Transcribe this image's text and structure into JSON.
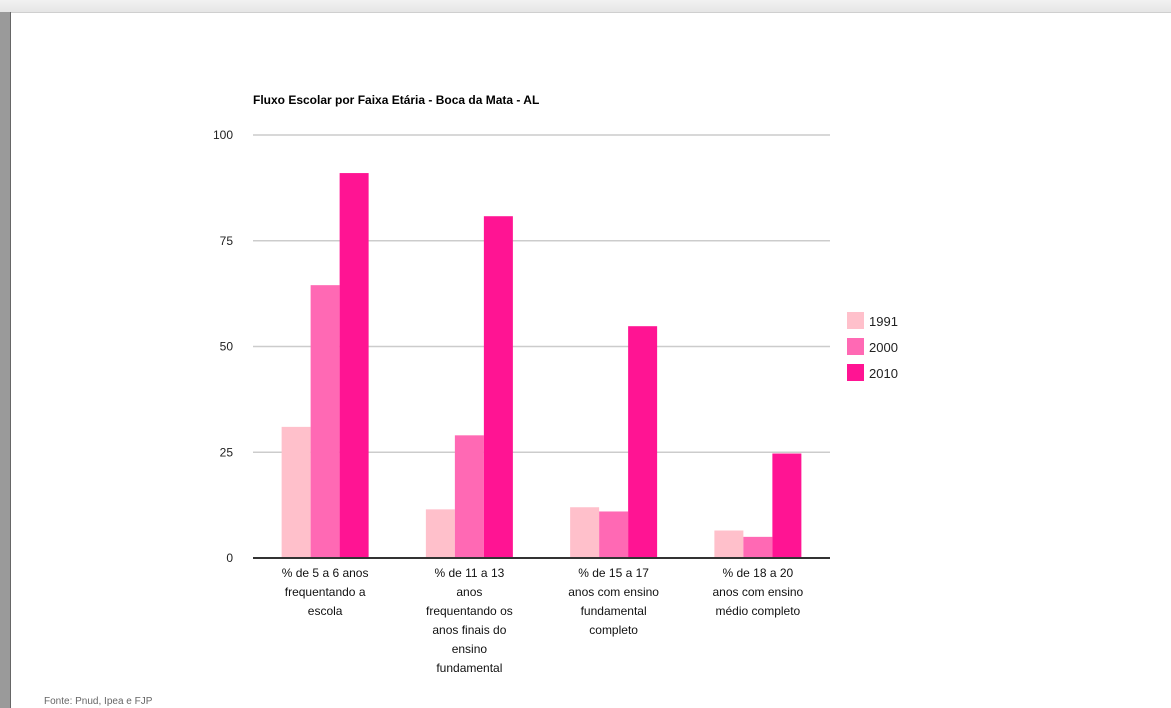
{
  "chart_data": {
    "type": "bar",
    "title": "Fluxo Escolar por Faixa Etária - Boca da Mata - AL",
    "categories": [
      [
        "% de 5 a 6 anos",
        "frequentando a",
        "escola"
      ],
      [
        "% de 11 a 13",
        "anos",
        "frequentando os",
        "anos finais do",
        "ensino",
        "fundamental"
      ],
      [
        "% de 15 a 17",
        "anos com ensino",
        "fundamental",
        "completo"
      ],
      [
        "% de 18 a 20",
        "anos com ensino",
        "médio completo"
      ]
    ],
    "series": [
      {
        "name": "1991",
        "color": "#ffc0cb",
        "values": [
          31,
          11.5,
          12,
          6.5
        ]
      },
      {
        "name": "2000",
        "color": "#ff69b4",
        "values": [
          64.5,
          29,
          11,
          5
        ]
      },
      {
        "name": "2010",
        "color": "#ff1493",
        "values": [
          91,
          80.8,
          54.8,
          24.7
        ]
      }
    ],
    "y_ticks": [
      0,
      25,
      50,
      75,
      100
    ],
    "ylim": [
      0,
      100
    ],
    "grid": true,
    "legend_position": "right"
  },
  "source_note": "Fonte: Pnud, Ipea e FJP"
}
